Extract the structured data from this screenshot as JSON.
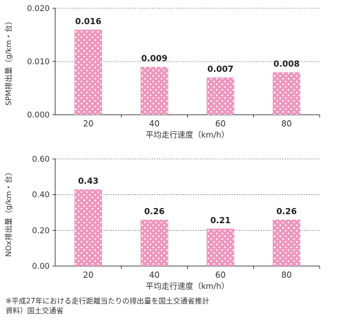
{
  "footnote_lines": [
    "※平成27年における走行距離当たりの排出量を国土交通省推計",
    "資料）国土交通省"
  ],
  "colors": {
    "bar_fill": "#ee97be",
    "dot": "#ffffff",
    "axis": "#333333",
    "grid": "#555555"
  },
  "chart_data": [
    {
      "type": "bar",
      "categories": [
        "20",
        "40",
        "60",
        "80"
      ],
      "values": [
        0.016,
        0.009,
        0.007,
        0.008
      ],
      "value_labels": [
        "0.016",
        "0.009",
        "0.007",
        "0.008"
      ],
      "ylim": [
        0,
        0.02
      ],
      "yticks": [
        "0.000",
        "0.010",
        "0.020"
      ],
      "xlabel": "平均走行速度（km/h）",
      "ylabel": "SPM排出量（g/km・台）",
      "grid": "dotted horizontal"
    },
    {
      "type": "bar",
      "categories": [
        "20",
        "40",
        "60",
        "80"
      ],
      "values": [
        0.43,
        0.26,
        0.21,
        0.26
      ],
      "value_labels": [
        "0.43",
        "0.26",
        "0.21",
        "0.26"
      ],
      "ylim": [
        0,
        0.6
      ],
      "yticks": [
        "0.00",
        "0.20",
        "0.40",
        "0.60"
      ],
      "xlabel": "平均走行速度（km/h）",
      "ylabel": "NOx排出量（g/km・台）",
      "grid": "dotted horizontal"
    }
  ]
}
